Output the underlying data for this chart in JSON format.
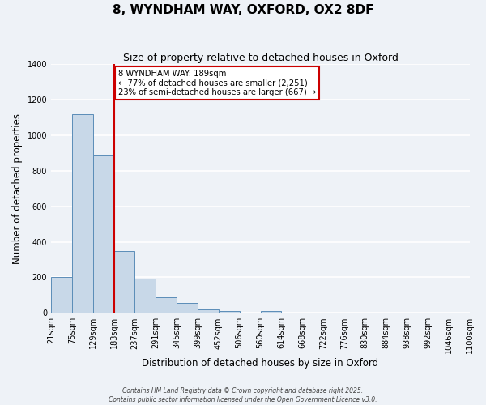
{
  "title": "8, WYNDHAM WAY, OXFORD, OX2 8DF",
  "subtitle": "Size of property relative to detached houses in Oxford",
  "xlabel": "Distribution of detached houses by size in Oxford",
  "ylabel": "Number of detached properties",
  "bar_color": "#c8d8e8",
  "bar_edge_color": "#5b8db8",
  "background_color": "#eef2f7",
  "grid_color": "#ffffff",
  "bin_labels": [
    "21sqm",
    "75sqm",
    "129sqm",
    "183sqm",
    "237sqm",
    "291sqm",
    "345sqm",
    "399sqm",
    "452sqm",
    "506sqm",
    "560sqm",
    "614sqm",
    "668sqm",
    "722sqm",
    "776sqm",
    "830sqm",
    "884sqm",
    "938sqm",
    "992sqm",
    "1046sqm",
    "1100sqm"
  ],
  "bar_values": [
    200,
    1120,
    890,
    350,
    195,
    90,
    58,
    22,
    10,
    0,
    12,
    0,
    0,
    0,
    0,
    0,
    0,
    0,
    0,
    0
  ],
  "ylim": [
    0,
    1400
  ],
  "yticks": [
    0,
    200,
    400,
    600,
    800,
    1000,
    1200,
    1400
  ],
  "property_line_x": 3,
  "annotation_title": "8 WYNDHAM WAY: 189sqm",
  "annotation_line1": "← 77% of detached houses are smaller (2,251)",
  "annotation_line2": "23% of semi-detached houses are larger (667) →",
  "annotation_box_color": "#ffffff",
  "annotation_box_edge": "#cc0000",
  "property_line_color": "#cc0000",
  "footer1": "Contains HM Land Registry data © Crown copyright and database right 2025.",
  "footer2": "Contains public sector information licensed under the Open Government Licence v3.0."
}
